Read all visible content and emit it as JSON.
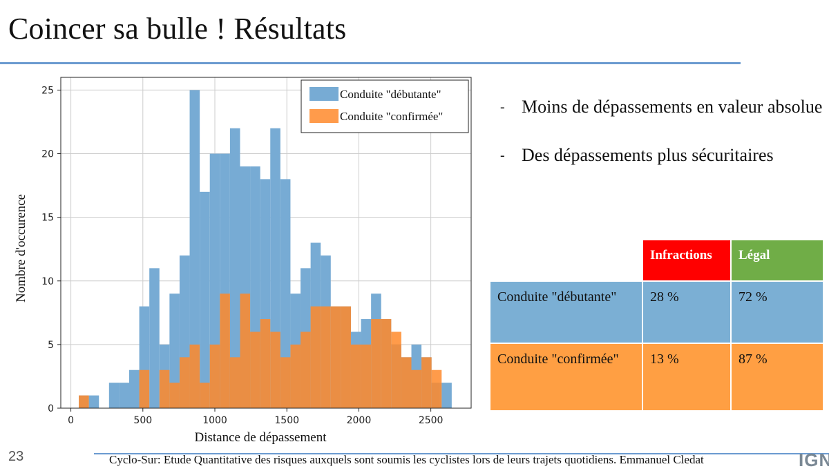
{
  "slide": {
    "title": "Coincer sa bulle ! Résultats",
    "page_number": "23",
    "footer": "Cyclo-Sur: Etude Quantitative des risques auxquels sont soumis les cyclistes lors de leurs trajets quotidiens. Emmanuel Cledat",
    "logo": "IGN"
  },
  "bullets": [
    {
      "dash": "-",
      "text": "Moins de dépassements en valeur absolue"
    },
    {
      "dash": "-",
      "text": "Des dépassements plus sécuritaires"
    }
  ],
  "table": {
    "headers": [
      "Infractions",
      "Légal"
    ],
    "header_colors": [
      "#ff0000",
      "#70ad47"
    ],
    "rows": [
      {
        "label": "Conduite \"débutante\"",
        "infractions": "28 %",
        "legal": "72 %",
        "color": "#7bafd4"
      },
      {
        "label": "Conduite \"confirmée\"",
        "infractions": "13 %",
        "legal": "87 %",
        "color": "#ff9f43"
      }
    ]
  },
  "chart_data": {
    "type": "bar",
    "xlabel": "Distance de dépassement",
    "ylabel": "Nombre d'occurence",
    "xlim": [
      -70,
      2780
    ],
    "ylim": [
      0,
      26
    ],
    "xticks": [
      0,
      500,
      1000,
      1500,
      2000,
      2500
    ],
    "yticks": [
      0,
      5,
      10,
      15,
      20,
      25
    ],
    "grid": true,
    "legend_position": "top-right",
    "bin_width": 70,
    "series": [
      {
        "name": "Conduite \"débutante\"",
        "color": "#77abd4",
        "bin_starts": [
          55,
          125,
          265,
          335,
          405,
          475,
          545,
          615,
          685,
          755,
          825,
          895,
          965,
          1035,
          1105,
          1175,
          1245,
          1315,
          1385,
          1455,
          1525,
          1595,
          1665,
          1735,
          1805,
          1875,
          1945,
          2015,
          2085,
          2155,
          2225,
          2295,
          2365,
          2435,
          2505,
          2575
        ],
        "values": [
          1,
          1,
          2,
          2,
          3,
          8,
          11,
          5,
          9,
          12,
          25,
          17,
          20,
          20,
          22,
          19,
          19,
          18,
          22,
          18,
          9,
          11,
          13,
          12,
          8,
          8,
          6,
          7,
          9,
          7,
          5,
          4,
          5,
          4,
          2,
          2
        ]
      },
      {
        "name": "Conduite \"confirmée\"",
        "color": "#ff8a2b",
        "bin_starts": [
          55,
          125,
          265,
          335,
          405,
          475,
          545,
          615,
          685,
          755,
          825,
          895,
          965,
          1035,
          1105,
          1175,
          1245,
          1315,
          1385,
          1455,
          1525,
          1595,
          1665,
          1735,
          1805,
          1875,
          1945,
          2015,
          2085,
          2155,
          2225,
          2295,
          2365,
          2435,
          2505,
          2575
        ],
        "values": [
          1,
          0,
          0,
          0,
          0,
          3,
          0,
          3,
          2,
          4,
          5,
          2,
          5,
          9,
          4,
          9,
          6,
          7,
          6,
          4,
          5,
          6,
          8,
          8,
          8,
          8,
          5,
          5,
          7,
          7,
          6,
          4,
          3,
          4,
          3,
          0
        ]
      }
    ]
  }
}
